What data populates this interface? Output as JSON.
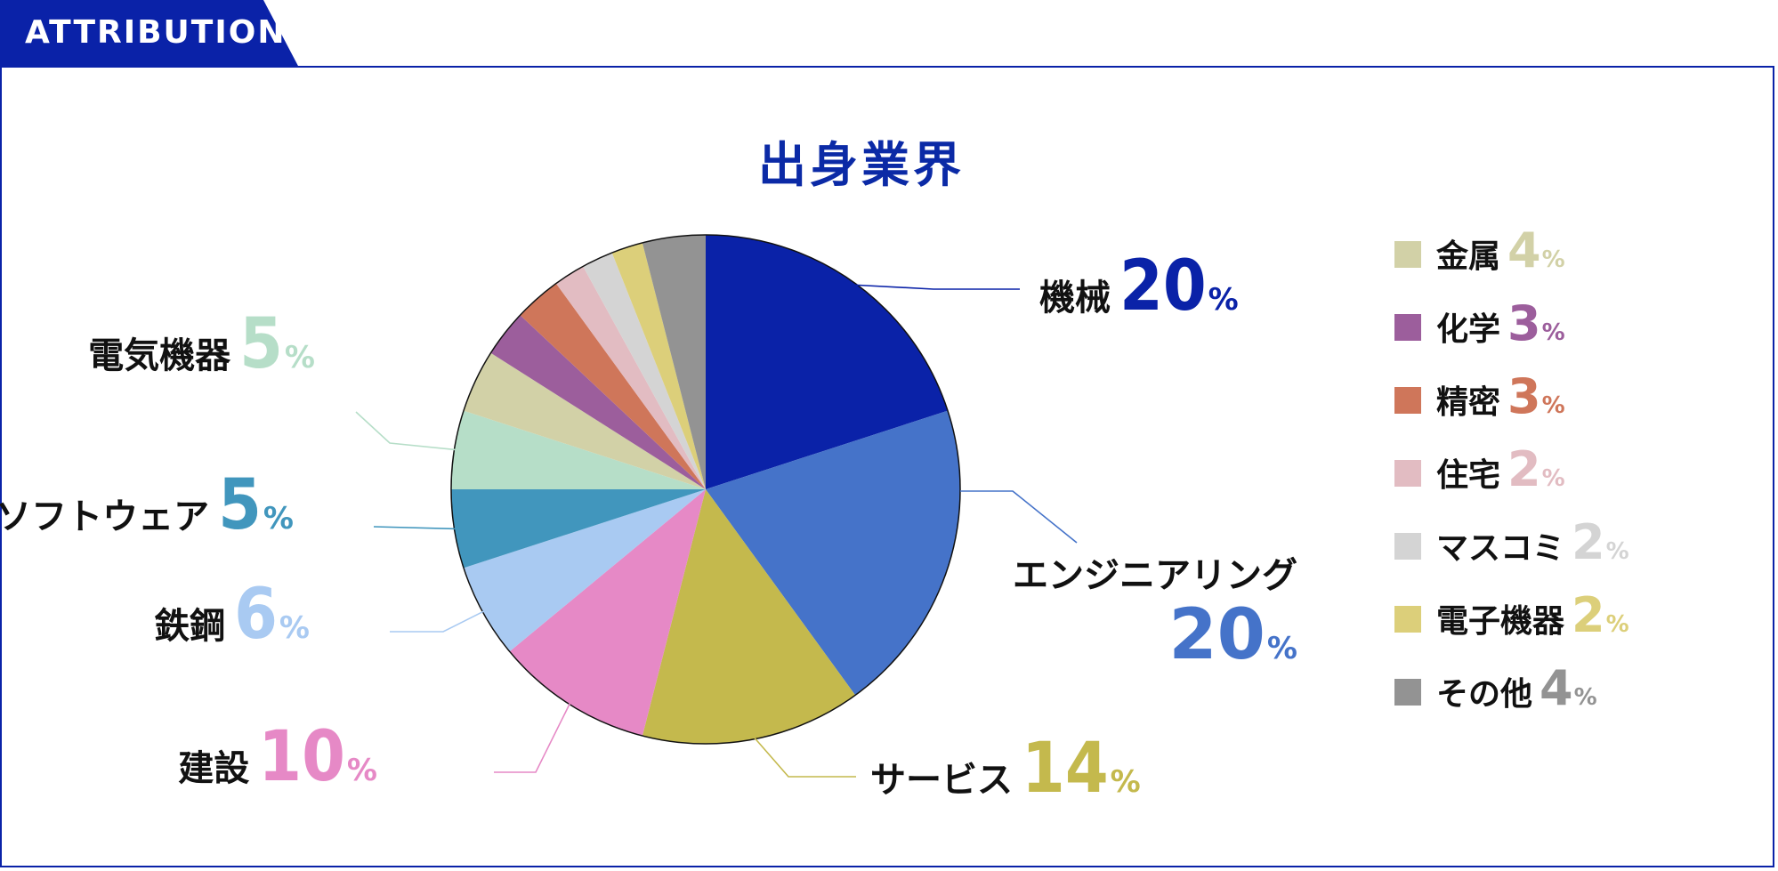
{
  "header": {
    "tab_label": "ATTRIBUTION"
  },
  "colors": {
    "brand": "#0a22a8",
    "title": "#0b2aa6"
  },
  "chart_data": {
    "type": "pie",
    "title": "出身業界",
    "unit": "%",
    "slices": [
      {
        "label": "機械",
        "value": 20,
        "color": "#0a22a8"
      },
      {
        "label": "エンジニアリング",
        "value": 20,
        "color": "#4573c9"
      },
      {
        "label": "サービス",
        "value": 14,
        "color": "#c4b94d"
      },
      {
        "label": "建設",
        "value": 10,
        "color": "#e689c6"
      },
      {
        "label": "鉄鋼",
        "value": 6,
        "color": "#a9caf2"
      },
      {
        "label": "ソフトウェア",
        "value": 5,
        "color": "#4196bd"
      },
      {
        "label": "電気機器",
        "value": 5,
        "color": "#b6dec8"
      },
      {
        "label": "金属",
        "value": 4,
        "color": "#d2d1a7"
      },
      {
        "label": "化学",
        "value": 3,
        "color": "#9c5e9c"
      },
      {
        "label": "精密",
        "value": 3,
        "color": "#cf765a"
      },
      {
        "label": "住宅",
        "value": 2,
        "color": "#e2bcc2"
      },
      {
        "label": "マスコミ",
        "value": 2,
        "color": "#d4d4d4"
      },
      {
        "label": "電子機器",
        "value": 2,
        "color": "#dccf7a"
      },
      {
        "label": "その他",
        "value": 4,
        "color": "#939393"
      }
    ],
    "callouts": [
      "機械",
      "エンジニアリング",
      "サービス",
      "建設",
      "鉄鋼",
      "ソフトウェア",
      "電気機器"
    ],
    "legend": [
      "金属",
      "化学",
      "精密",
      "住宅",
      "マスコミ",
      "電子機器",
      "その他"
    ],
    "legend_placement": "right"
  }
}
